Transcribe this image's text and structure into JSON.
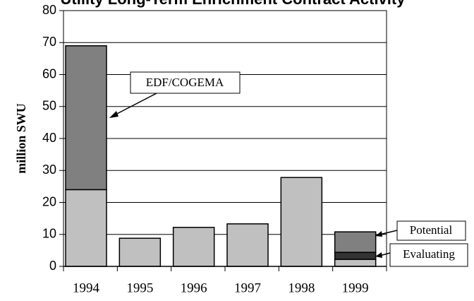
{
  "chart_data": {
    "type": "bar",
    "stacked": true,
    "title": "Utility Long-Term Enrichment Contract Activity",
    "y_label": "million SWU",
    "categories": [
      "1994",
      "1995",
      "1996",
      "1997",
      "1998",
      "1999"
    ],
    "series": [
      {
        "color": "#c0c0c0",
        "values": [
          24,
          8.8,
          12.2,
          13.3,
          27.8,
          2.2
        ]
      },
      {
        "name": "Evaluating",
        "color": "#333333",
        "values": [
          null,
          null,
          null,
          null,
          null,
          2.2
        ]
      },
      {
        "name": "EDF/COGEMA",
        "color": "#808080",
        "values": [
          45,
          null,
          null,
          null,
          null,
          null
        ]
      },
      {
        "name": "Potential",
        "color": "#808080",
        "values": [
          null,
          null,
          null,
          null,
          null,
          6.4
        ]
      }
    ],
    "ylim": [
      0,
      80
    ],
    "yticks": [
      0,
      10,
      20,
      30,
      40,
      50,
      60,
      70,
      80
    ],
    "grid": true
  }
}
